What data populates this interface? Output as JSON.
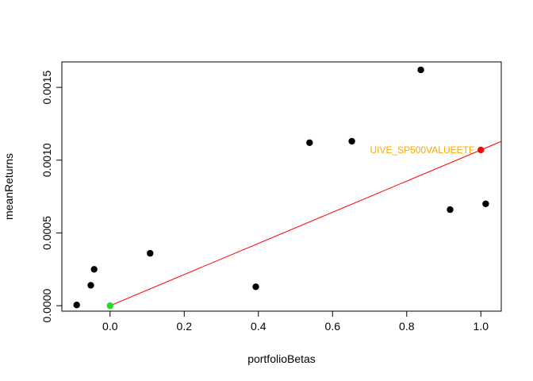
{
  "chart_data": {
    "type": "scatter",
    "title": "",
    "xlabel": "portfolioBetas",
    "ylabel": "meanReturns",
    "xlim": [
      -0.13,
      1.055
    ],
    "ylim": [
      -3.75e-05,
      0.001675
    ],
    "x_ticks": [
      0.0,
      0.2,
      0.4,
      0.6,
      0.8,
      1.0
    ],
    "x_tick_labels": [
      "0.0",
      "0.2",
      "0.4",
      "0.6",
      "0.8",
      "1.0"
    ],
    "y_ticks": [
      0.0,
      0.0005,
      0.001,
      0.0015
    ],
    "y_tick_labels": [
      "0.0000",
      "0.0005",
      "0.0010",
      "0.0015"
    ],
    "grid": false,
    "points": [
      {
        "x": -0.09,
        "y": 5e-06,
        "color": "#000000"
      },
      {
        "x": -0.052,
        "y": 0.00014,
        "color": "#000000"
      },
      {
        "x": -0.043,
        "y": 0.00025,
        "color": "#000000"
      },
      {
        "x": 0.108,
        "y": 0.00036,
        "color": "#000000"
      },
      {
        "x": 0.393,
        "y": 0.00013,
        "color": "#000000"
      },
      {
        "x": 0.538,
        "y": 0.00112,
        "color": "#000000"
      },
      {
        "x": 0.652,
        "y": 0.00113,
        "color": "#000000"
      },
      {
        "x": 0.838,
        "y": 0.00162,
        "color": "#000000"
      },
      {
        "x": 0.917,
        "y": 0.00066,
        "color": "#000000"
      },
      {
        "x": 1.013,
        "y": 0.0007,
        "color": "#000000"
      },
      {
        "x": 0.0,
        "y": 0.0,
        "color": "#22dd22"
      },
      {
        "x": 1.0,
        "y": 0.00107,
        "color": "#ff0000"
      }
    ],
    "line": {
      "intercept": 0.0,
      "slope": 0.00107,
      "color": "#ff0000"
    },
    "annotation": {
      "text": "UIVE_SP500VALUEETF",
      "x": 1.0,
      "y": 0.00107,
      "color": "#ffa500"
    }
  }
}
